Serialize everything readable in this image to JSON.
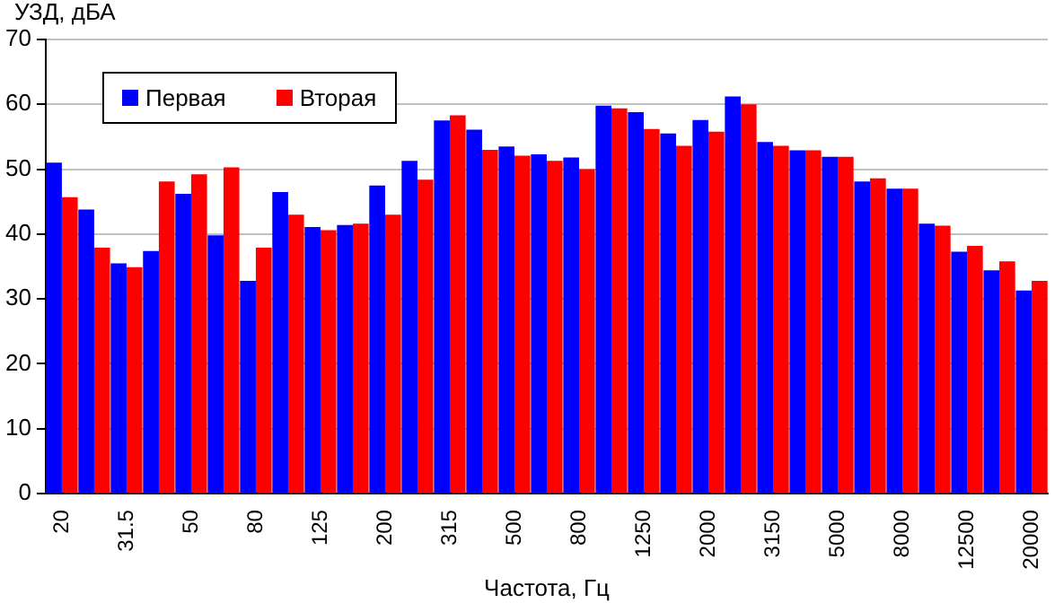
{
  "chart_data": {
    "type": "bar",
    "ylabel": "УЗД, дБА",
    "xlabel": "Частота, Гц",
    "categories": [
      "20",
      null,
      "31.5",
      null,
      "50",
      null,
      "80",
      null,
      "125",
      null,
      "200",
      null,
      "315",
      null,
      "500",
      null,
      "800",
      null,
      "1250",
      null,
      "2000",
      null,
      "3150",
      null,
      "5000",
      null,
      "8000",
      null,
      "12500",
      null,
      "20000"
    ],
    "series": [
      {
        "name": "Первая",
        "color": "#0000ff",
        "values": [
          51,
          43.8,
          35.5,
          37.4,
          46.2,
          39.8,
          32.8,
          46.5,
          41.1,
          41.4,
          47.5,
          51.3,
          57.5,
          56.1,
          53.5,
          52.3,
          51.8,
          59.8,
          58.8,
          55.5,
          57.6,
          61.2,
          54.2,
          52.9,
          51.9,
          48.1,
          47,
          41.6,
          37.3,
          34.4,
          31.3
        ]
      },
      {
        "name": "Вторая",
        "color": "#ff0000",
        "values": [
          45.7,
          37.9,
          34.9,
          48.1,
          49.2,
          50.3,
          37.9,
          43,
          40.6,
          41.6,
          43,
          48.4,
          58.3,
          53,
          52.1,
          51.3,
          50,
          59.4,
          56.2,
          53.6,
          55.8,
          60,
          53.6,
          52.9,
          51.9,
          48.6,
          47,
          41.3,
          38.2,
          35.8,
          32.8
        ]
      }
    ],
    "ylim": [
      0,
      70
    ],
    "yticks": [
      0,
      10,
      20,
      30,
      40,
      50,
      60,
      70
    ],
    "grid": "y",
    "legend": "top left"
  }
}
